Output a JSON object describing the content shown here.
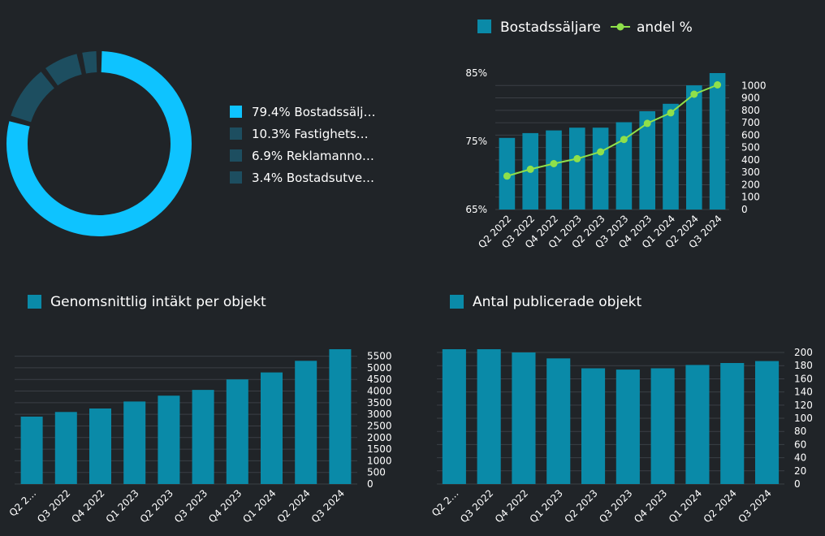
{
  "colors": {
    "background": "#202428",
    "bar": "#0a8aa8",
    "donut_primary": "#0ec3ff",
    "donut_secondary": "#1d4e60",
    "line": "#8fe04a",
    "grid": "#3a3f45",
    "text": "#ffffff"
  },
  "chart_data": [
    {
      "type": "pie",
      "variant": "donut",
      "title": "",
      "categories": [
        "Bostadssäljare",
        "Fastighetsförmedlare",
        "Reklamannonsörer",
        "Bostadsutvecklare"
      ],
      "values": [
        79.4,
        10.3,
        6.9,
        3.4
      ],
      "legend": [
        "79.4% Bostadssälj…",
        "10.3% Fastighets…",
        "6.9% Reklamanno…",
        "3.4% Bostadsutve…"
      ],
      "legend_position": "right"
    },
    {
      "type": "bar",
      "title": "",
      "legend": [
        "Bostadssäljare",
        "andel %"
      ],
      "legend_position": "top",
      "categories": [
        "Q2 2022",
        "Q3 2022",
        "Q4 2022",
        "Q1 2023",
        "Q2 2023",
        "Q3 2023",
        "Q4 2023",
        "Q1 2024",
        "Q2 2024",
        "Q3 2024"
      ],
      "series": [
        {
          "name": "Bostadssäljare",
          "type": "bar",
          "axis": "left",
          "values": [
            75.5,
            76.2,
            76.6,
            77,
            77,
            77.8,
            79.4,
            80.5,
            83.2,
            85
          ]
        },
        {
          "name": "andel %",
          "type": "line",
          "axis": "right",
          "values": [
            270,
            325,
            370,
            410,
            465,
            565,
            695,
            780,
            930,
            1005
          ]
        }
      ],
      "y_left": {
        "ticks": [
          "85%",
          "75%",
          "65%"
        ],
        "tick_values": [
          85,
          75,
          65
        ],
        "ylim": [
          65,
          85
        ]
      },
      "y_right": {
        "ticks": [
          "1000",
          "900",
          "800",
          "700",
          "600",
          "500",
          "400",
          "300",
          "200",
          "100",
          "0"
        ],
        "tick_values": [
          1000,
          900,
          800,
          700,
          600,
          500,
          400,
          300,
          200,
          100,
          0
        ],
        "ylim": [
          0,
          1100
        ]
      }
    },
    {
      "type": "bar",
      "title": "Genomsnittlig intäkt per objekt",
      "legend": [
        "Genomsnittlig intäkt per objekt"
      ],
      "legend_position": "top",
      "categories": [
        "Q2 2…",
        "Q3 2022",
        "Q4 2022",
        "Q1 2023",
        "Q2 2023",
        "Q3 2023",
        "Q4 2023",
        "Q1 2024",
        "Q2 2024",
        "Q3 2024"
      ],
      "values": [
        2900,
        3100,
        3250,
        3550,
        3800,
        4050,
        4500,
        4800,
        5300,
        5800
      ],
      "y_right": {
        "ticks": [
          "5500",
          "5000",
          "4500",
          "4000",
          "3500",
          "3000",
          "2500",
          "2000",
          "1500",
          "1000",
          "500",
          "0"
        ],
        "tick_values": [
          5500,
          5000,
          4500,
          4000,
          3500,
          3000,
          2500,
          2000,
          1500,
          1000,
          500,
          0
        ],
        "ylim": [
          0,
          5800
        ]
      }
    },
    {
      "type": "bar",
      "title": "Antal publicerade objekt",
      "legend": [
        "Antal publicerade objekt"
      ],
      "legend_position": "top",
      "categories": [
        "Q2 2…",
        "Q3 2022",
        "Q4 2022",
        "Q1 2023",
        "Q2 2023",
        "Q3 2023",
        "Q4 2023",
        "Q1 2024",
        "Q2 2024",
        "Q3 2024"
      ],
      "values": [
        205,
        205,
        200,
        191,
        176,
        174,
        176,
        181,
        184,
        187
      ],
      "y_right": {
        "ticks": [
          "200",
          "180",
          "160",
          "140",
          "120",
          "100",
          "80",
          "60",
          "40",
          "20",
          "0"
        ],
        "tick_values": [
          200,
          180,
          160,
          140,
          120,
          100,
          80,
          60,
          40,
          20,
          0
        ],
        "ylim": [
          0,
          205
        ]
      }
    }
  ]
}
